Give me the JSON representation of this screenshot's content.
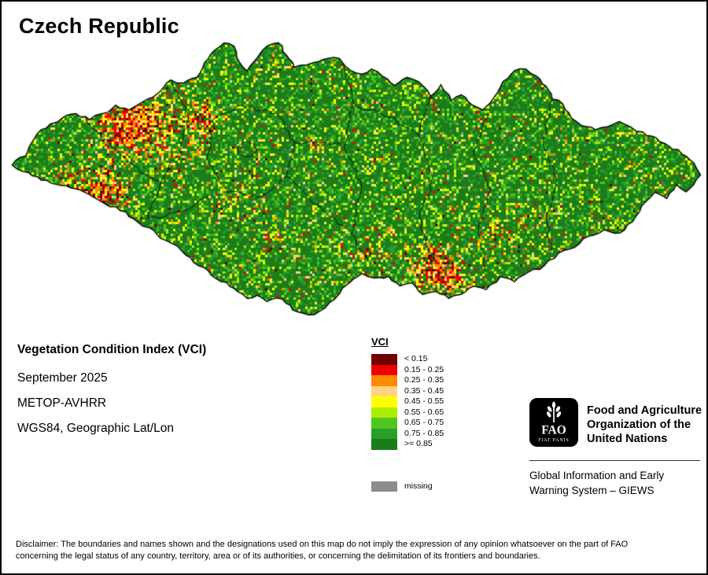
{
  "title": "Czech Republic",
  "info": {
    "line1": "Vegetation Condition Index (VCI)",
    "line2": "September 2025",
    "line3": "METOP-AVHRR",
    "line4": "WGS84, Geographic Lat/Lon"
  },
  "legend": {
    "title": "VCI",
    "items": [
      {
        "label": "< 0.15",
        "color": "#720000"
      },
      {
        "label": "0.15 - 0.25",
        "color": "#ee0000"
      },
      {
        "label": "0.25 - 0.35",
        "color": "#ff8a00"
      },
      {
        "label": "0.35 - 0.45",
        "color": "#ffd37f"
      },
      {
        "label": "0.45 - 0.55",
        "color": "#ffff00"
      },
      {
        "label": "0.55 - 0.65",
        "color": "#aaee00"
      },
      {
        "label": "0.65 - 0.75",
        "color": "#4fc61f"
      },
      {
        "label": "0.75 - 0.85",
        "color": "#28a028"
      },
      {
        "label": ">= 0.85",
        "color": "#1c7c1c"
      }
    ],
    "missing": {
      "label": "missing",
      "color": "#8c8c8c"
    }
  },
  "fao": {
    "logo_text": "FAO",
    "logo_motto": "FIAT PANIS",
    "org_line1": "Food and Agriculture",
    "org_line2": "Organization of the",
    "org_line3": "United Nations",
    "giews_line1": "Global Information and Early",
    "giews_line2": "Warning System – GIEWS"
  },
  "disclaimer": {
    "line1": "Disclaimer: The boundaries and names shown and the designations used on this map do not imply the expression of any opinion whatsoever on the part of FAO",
    "line2": "concerning the legal status of any country, territory, area or of its authorities, or concerning the delimitation of its frontiers and boundaries."
  }
}
